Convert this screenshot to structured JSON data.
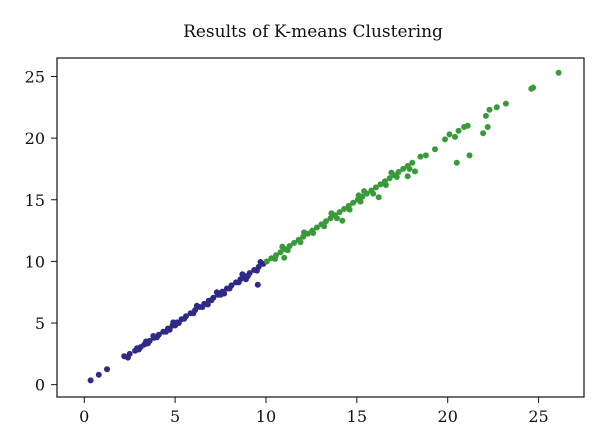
{
  "chart_data": {
    "type": "scatter",
    "title": "Results of K-means Clustering",
    "xlabel": "",
    "ylabel": "",
    "xlim": [
      -1.5,
      27.5
    ],
    "ylim": [
      -1.0,
      26.5
    ],
    "x_ticks": [
      0,
      5,
      10,
      15,
      20,
      25
    ],
    "y_ticks": [
      0,
      5,
      10,
      15,
      20,
      25
    ],
    "grid": false,
    "legend": "none",
    "series": [
      {
        "color": "#2e2a85",
        "points": [
          [
            0.35,
            0.35
          ],
          [
            0.8,
            0.8
          ],
          [
            1.25,
            1.25
          ],
          [
            2.2,
            2.3
          ],
          [
            2.5,
            2.5
          ],
          [
            2.8,
            2.75
          ],
          [
            3.1,
            3.05
          ],
          [
            3.3,
            3.25
          ],
          [
            3.6,
            3.55
          ],
          [
            3.85,
            3.8
          ],
          [
            4.1,
            4.05
          ],
          [
            4.35,
            4.3
          ],
          [
            4.6,
            4.55
          ],
          [
            4.85,
            4.8
          ],
          [
            5.1,
            5.05
          ],
          [
            5.35,
            5.3
          ],
          [
            5.6,
            5.55
          ],
          [
            5.85,
            5.8
          ],
          [
            6.1,
            6.05
          ],
          [
            6.35,
            6.3
          ],
          [
            6.6,
            6.55
          ],
          [
            6.85,
            6.8
          ],
          [
            7.1,
            7.05
          ],
          [
            7.35,
            7.3
          ],
          [
            7.6,
            7.55
          ],
          [
            7.85,
            7.8
          ],
          [
            8.1,
            8.05
          ],
          [
            8.35,
            8.3
          ],
          [
            8.6,
            8.55
          ],
          [
            8.85,
            8.8
          ],
          [
            9.1,
            9.05
          ],
          [
            9.35,
            9.3
          ],
          [
            9.6,
            9.55
          ],
          [
            9.85,
            9.8
          ],
          [
            2.4,
            2.2
          ],
          [
            3.0,
            2.85
          ],
          [
            3.5,
            3.35
          ],
          [
            4.0,
            3.85
          ],
          [
            4.5,
            4.3
          ],
          [
            5.0,
            4.8
          ],
          [
            5.5,
            5.35
          ],
          [
            6.0,
            5.8
          ],
          [
            6.5,
            6.3
          ],
          [
            7.0,
            6.85
          ],
          [
            7.5,
            7.3
          ],
          [
            8.0,
            7.8
          ],
          [
            8.5,
            8.3
          ],
          [
            9.0,
            8.8
          ],
          [
            9.5,
            9.25
          ],
          [
            3.8,
            3.95
          ],
          [
            4.9,
            5.05
          ],
          [
            6.2,
            6.4
          ],
          [
            7.3,
            7.5
          ],
          [
            8.7,
            8.95
          ],
          [
            9.7,
            9.95
          ],
          [
            4.7,
            4.45
          ],
          [
            6.8,
            6.5
          ],
          [
            8.9,
            8.55
          ],
          [
            9.55,
            8.1
          ],
          [
            5.2,
            5.0
          ],
          [
            7.7,
            7.4
          ],
          [
            2.9,
            2.95
          ],
          [
            3.4,
            3.5
          ]
        ]
      },
      {
        "color": "#3a9a3a",
        "points": [
          [
            10.05,
            10.0
          ],
          [
            10.3,
            10.25
          ],
          [
            10.55,
            10.5
          ],
          [
            10.8,
            10.75
          ],
          [
            11.05,
            11.0
          ],
          [
            11.3,
            11.25
          ],
          [
            11.55,
            11.5
          ],
          [
            11.8,
            11.75
          ],
          [
            12.05,
            12.0
          ],
          [
            12.3,
            12.25
          ],
          [
            12.55,
            12.5
          ],
          [
            12.8,
            12.75
          ],
          [
            13.05,
            13.0
          ],
          [
            13.3,
            13.25
          ],
          [
            13.55,
            13.5
          ],
          [
            13.8,
            13.75
          ],
          [
            14.05,
            14.0
          ],
          [
            14.3,
            14.25
          ],
          [
            14.55,
            14.5
          ],
          [
            14.8,
            14.75
          ],
          [
            15.05,
            15.0
          ],
          [
            15.3,
            15.25
          ],
          [
            15.55,
            15.5
          ],
          [
            15.8,
            15.75
          ],
          [
            16.05,
            16.0
          ],
          [
            16.3,
            16.25
          ],
          [
            16.55,
            16.5
          ],
          [
            16.8,
            16.75
          ],
          [
            17.05,
            17.0
          ],
          [
            17.3,
            17.25
          ],
          [
            17.55,
            17.5
          ],
          [
            17.8,
            17.75
          ],
          [
            18.05,
            18.0
          ],
          [
            10.5,
            10.2
          ],
          [
            11.2,
            10.9
          ],
          [
            11.9,
            11.55
          ],
          [
            12.6,
            12.3
          ],
          [
            13.2,
            12.85
          ],
          [
            13.9,
            13.5
          ],
          [
            14.6,
            14.2
          ],
          [
            15.2,
            14.85
          ],
          [
            15.9,
            15.5
          ],
          [
            16.6,
            16.2
          ],
          [
            17.2,
            16.85
          ],
          [
            17.9,
            17.5
          ],
          [
            12.1,
            12.35
          ],
          [
            13.6,
            13.9
          ],
          [
            15.4,
            15.7
          ],
          [
            16.9,
            17.2
          ],
          [
            17.8,
            16.9
          ],
          [
            18.2,
            17.3
          ],
          [
            16.2,
            15.2
          ],
          [
            14.2,
            13.3
          ],
          [
            11.0,
            10.3
          ],
          [
            10.9,
            11.2
          ],
          [
            15.1,
            15.35
          ],
          [
            18.5,
            18.5
          ],
          [
            18.8,
            18.6
          ],
          [
            19.3,
            19.1
          ],
          [
            19.85,
            19.9
          ],
          [
            20.1,
            20.3
          ],
          [
            20.4,
            20.1
          ],
          [
            20.6,
            20.6
          ],
          [
            20.9,
            20.9
          ],
          [
            21.1,
            21.0
          ],
          [
            20.5,
            18.0
          ],
          [
            21.2,
            18.6
          ],
          [
            21.95,
            20.4
          ],
          [
            22.2,
            20.9
          ],
          [
            22.3,
            22.3
          ],
          [
            22.7,
            22.5
          ],
          [
            22.1,
            21.8
          ],
          [
            23.2,
            22.8
          ],
          [
            24.7,
            24.1
          ],
          [
            24.6,
            24.0
          ],
          [
            26.1,
            25.3
          ]
        ]
      }
    ]
  }
}
